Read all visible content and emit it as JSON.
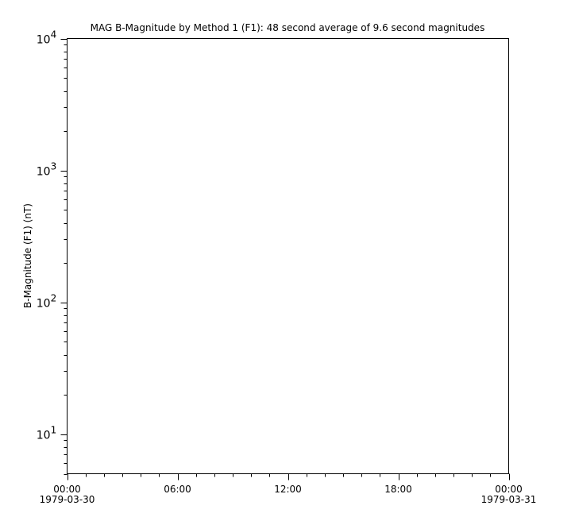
{
  "chart_data": {
    "type": "line",
    "title": "MAG  B-Magnitude by Method 1 (F1): 48 second average of 9.6 second magnitudes",
    "xlabel": "",
    "ylabel": "B-Magnitude (F1) (nT)",
    "yscale": "log",
    "ylim": [
      5,
      10000
    ],
    "ytick_labels": [
      {
        "value": 10,
        "base": "10",
        "exp": "1"
      },
      {
        "value": 100,
        "base": "10",
        "exp": "2"
      },
      {
        "value": 1000,
        "base": "10",
        "exp": "3"
      },
      {
        "value": 10000,
        "base": "10",
        "exp": "4"
      }
    ],
    "xlim_hours": [
      0,
      24
    ],
    "xtick_labels": [
      {
        "hour": 0,
        "time": "00:00",
        "date": "1979-03-30"
      },
      {
        "hour": 6,
        "time": "06:00",
        "date": ""
      },
      {
        "hour": 12,
        "time": "12:00",
        "date": ""
      },
      {
        "hour": 18,
        "time": "18:00",
        "date": ""
      },
      {
        "hour": 24,
        "time": "00:00",
        "date": "1979-03-31"
      }
    ],
    "series": [],
    "grid": false,
    "colors": {
      "axis": "#000000",
      "background": "#ffffff"
    }
  }
}
